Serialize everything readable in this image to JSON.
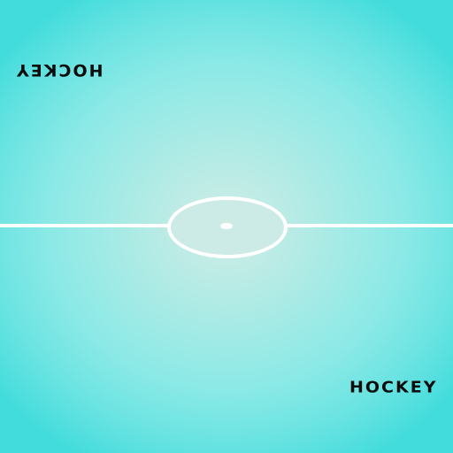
{
  "rink": {
    "top_label": "HOCKEY",
    "bottom_label": "HOCKEY"
  },
  "colors": {
    "ice_center": "#d2ece6",
    "ice_edge": "#43dcdc",
    "lines": "#ffffff",
    "text": "#0c0c0c"
  }
}
